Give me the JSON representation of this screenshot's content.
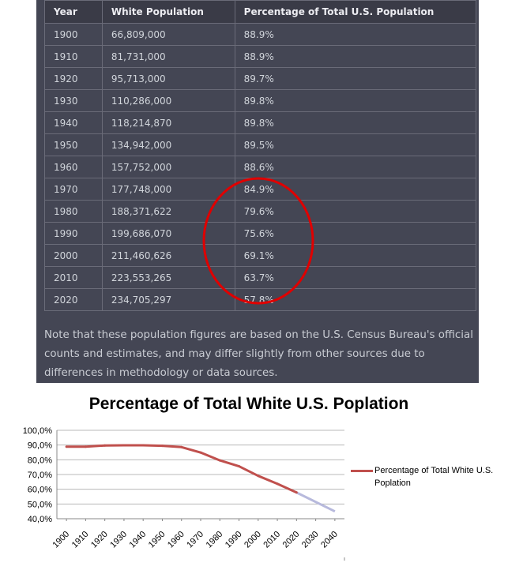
{
  "table": {
    "headers": [
      "Year",
      "White Population",
      "Percentage of Total U.S. Population"
    ],
    "rows": [
      [
        "1900",
        "66,809,000",
        "88.9%"
      ],
      [
        "1910",
        "81,731,000",
        "88.9%"
      ],
      [
        "1920",
        "95,713,000",
        "89.7%"
      ],
      [
        "1930",
        "110,286,000",
        "89.8%"
      ],
      [
        "1940",
        "118,214,870",
        "89.8%"
      ],
      [
        "1950",
        "134,942,000",
        "89.5%"
      ],
      [
        "1960",
        "157,752,000",
        "88.6%"
      ],
      [
        "1970",
        "177,748,000",
        "84.9%"
      ],
      [
        "1980",
        "188,371,622",
        "79.6%"
      ],
      [
        "1990",
        "199,686,070",
        "75.6%"
      ],
      [
        "2000",
        "211,460,626",
        "69.1%"
      ],
      [
        "2010",
        "223,553,265",
        "63.7%"
      ],
      [
        "2020",
        "234,705,297",
        "57.8%"
      ]
    ]
  },
  "note": "Note that these population figures are based on the U.S. Census Bureau's official counts and estimates, and may differ slightly from other sources due to differences in methodology or data sources.",
  "colors": {
    "panel_bg": "#444654",
    "highlight_oval": "#e00000",
    "series_line": "#c0504d",
    "projection_line": "#b7b9dc"
  },
  "chart_data": {
    "type": "line",
    "title": "Percentage of Total White U.S. Poplation",
    "xlabel": "",
    "ylabel": "",
    "categories": [
      "1900",
      "1910",
      "1920",
      "1930",
      "1940",
      "1950",
      "1960",
      "1970",
      "1980",
      "1990",
      "2000",
      "2010",
      "2020",
      "2030",
      "2040"
    ],
    "ytick_labels": [
      "40,0%",
      "50,0%",
      "60,0%",
      "70,0%",
      "80,0%",
      "90,0%",
      "100,0%"
    ],
    "ylim": [
      40,
      100
    ],
    "grid": true,
    "legend_position": "right",
    "series": [
      {
        "name": "Percentage of Total  White U.S. Poplation",
        "x": [
          1900,
          1910,
          1920,
          1930,
          1940,
          1950,
          1960,
          1970,
          1980,
          1990,
          2000,
          2010,
          2020
        ],
        "values": [
          88.9,
          88.9,
          89.7,
          89.8,
          89.8,
          89.5,
          88.6,
          84.9,
          79.6,
          75.6,
          69.1,
          63.7,
          57.8
        ]
      }
    ],
    "projection": {
      "x": [
        2020,
        2040
      ],
      "values": [
        57.8,
        45.0
      ]
    }
  }
}
